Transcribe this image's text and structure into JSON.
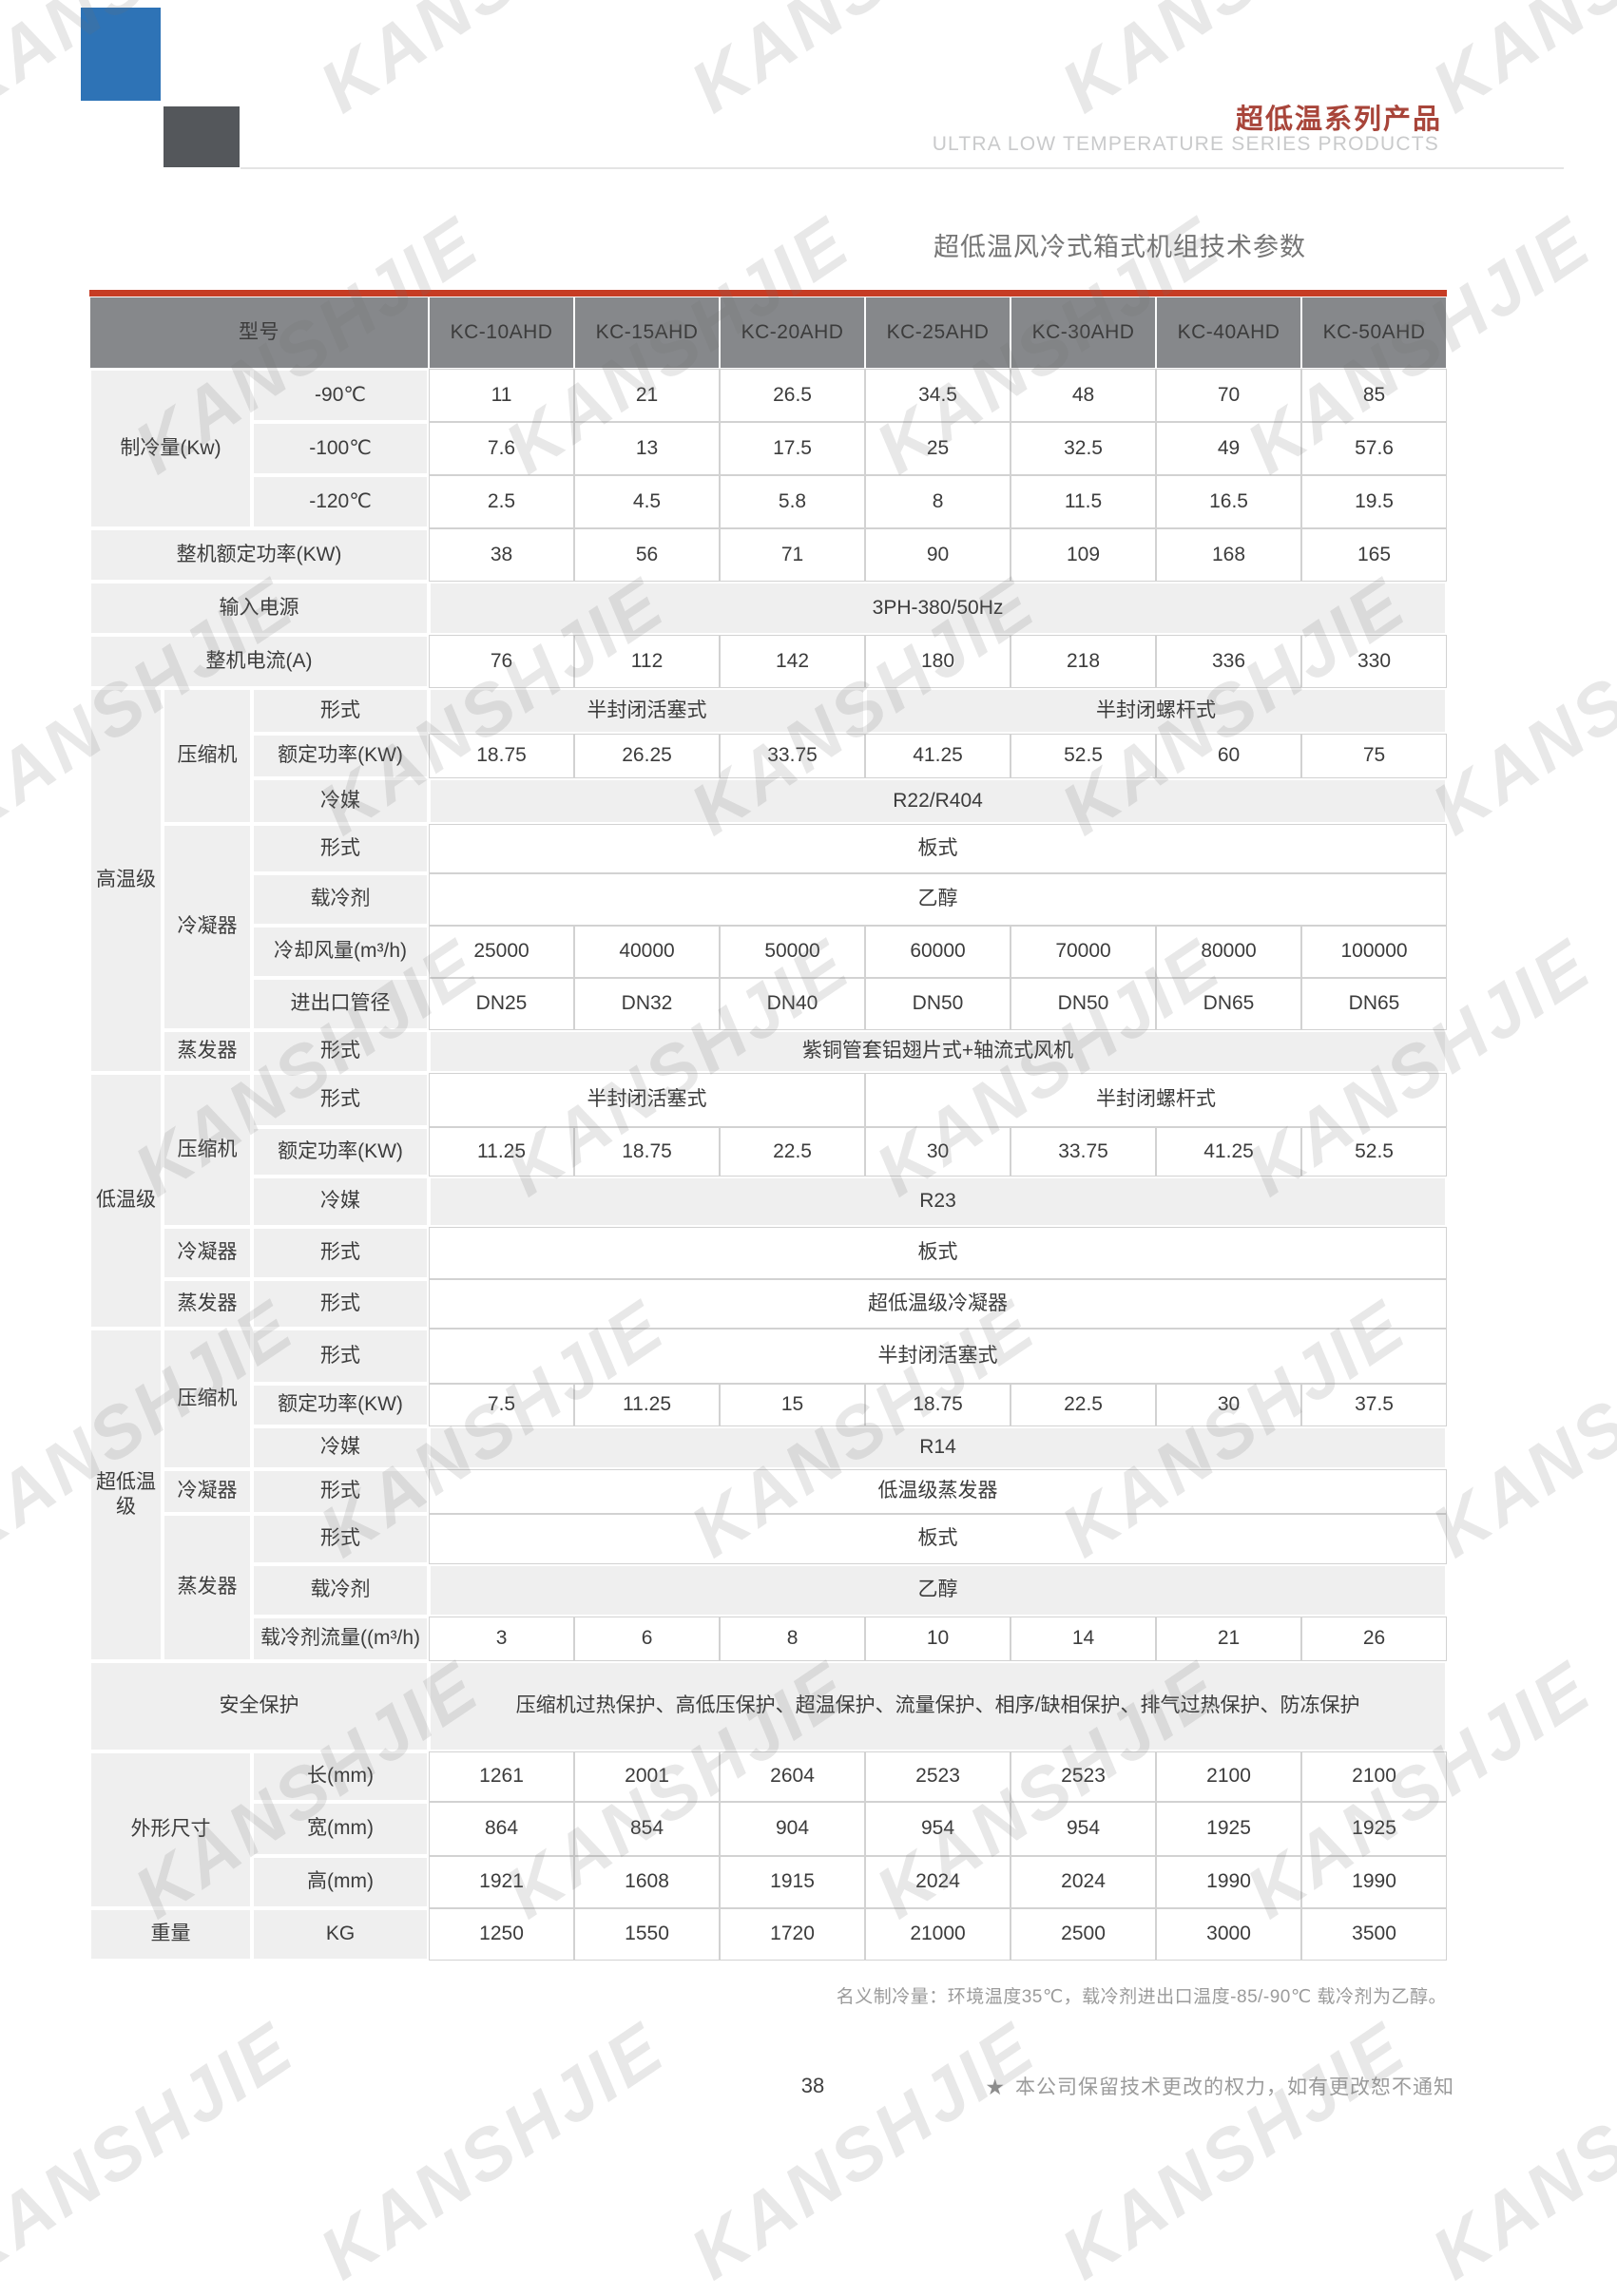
{
  "watermark": {
    "text": "KANSHJIE"
  },
  "colors": {
    "accent_red": "#c63c24",
    "header_gray": "#86888b",
    "brand_blue": "#2e73b6",
    "brand_dark_red": "#a8453a"
  },
  "page_header": {
    "title_cn": "超低温系列产品",
    "title_en": "ULTRA LOW TEMPERATURE SERIES PRODUCTS"
  },
  "table_title": "超低温风冷式箱式机组技术参数",
  "table": {
    "model_header": "型号",
    "models": [
      "KC-10AHD",
      "KC-15AHD",
      "KC-20AHD",
      "KC-25AHD",
      "KC-30AHD",
      "KC-40AHD",
      "KC-50AHD"
    ],
    "cooling": {
      "label": "制冷量(Kw)",
      "rows": [
        {
          "label": "-90℃",
          "values": [
            "11",
            "21",
            "26.5",
            "34.5",
            "48",
            "70",
            "85"
          ]
        },
        {
          "label": "-100℃",
          "values": [
            "7.6",
            "13",
            "17.5",
            "25",
            "32.5",
            "49",
            "57.6"
          ]
        },
        {
          "label": "-120℃",
          "values": [
            "2.5",
            "4.5",
            "5.8",
            "8",
            "11.5",
            "16.5",
            "19.5"
          ]
        }
      ]
    },
    "total_power": {
      "label": "整机额定功率(KW)",
      "values": [
        "38",
        "56",
        "71",
        "90",
        "109",
        "168",
        "165"
      ]
    },
    "input_power": {
      "label": "输入电源",
      "value": "3PH-380/50Hz"
    },
    "total_current": {
      "label": "整机电流(A)",
      "values": [
        "76",
        "112",
        "142",
        "180",
        "218",
        "336",
        "330"
      ]
    },
    "high_stage": {
      "label": "高温级",
      "compressor": {
        "label": "压缩机",
        "type_label": "形式",
        "type_piston": "半封闭活塞式",
        "type_screw": "半封闭螺杆式",
        "power_label": "额定功率(KW)",
        "power_values": [
          "18.75",
          "26.25",
          "33.75",
          "41.25",
          "52.5",
          "60",
          "75"
        ],
        "refrigerant_label": "冷媒",
        "refrigerant": "R22/R404"
      },
      "condenser": {
        "label": "冷凝器",
        "type_label": "形式",
        "type": "板式",
        "coolant_label": "载冷剂",
        "coolant": "乙醇",
        "airflow_label": "冷却风量(m³/h)",
        "airflow_values": [
          "25000",
          "40000",
          "50000",
          "60000",
          "70000",
          "80000",
          "100000"
        ],
        "pipe_label": "进出口管径",
        "pipe_values": [
          "DN25",
          "DN32",
          "DN40",
          "DN50",
          "DN50",
          "DN65",
          "DN65"
        ]
      },
      "evaporator": {
        "label": "蒸发器",
        "type_label": "形式",
        "type": "紫铜管套铝翅片式+轴流式风机"
      }
    },
    "low_stage": {
      "label": "低温级",
      "compressor": {
        "label": "压缩机",
        "type_label": "形式",
        "type_piston": "半封闭活塞式",
        "type_screw": "半封闭螺杆式",
        "power_label": "额定功率(KW)",
        "power_values": [
          "11.25",
          "18.75",
          "22.5",
          "30",
          "33.75",
          "41.25",
          "52.5"
        ],
        "refrigerant_label": "冷媒",
        "refrigerant": "R23"
      },
      "condenser": {
        "label": "冷凝器",
        "type_label": "形式",
        "type": "板式"
      },
      "evaporator": {
        "label": "蒸发器",
        "type_label": "形式",
        "type": "超低温级冷凝器"
      }
    },
    "ultra_stage": {
      "label": "超低温级",
      "compressor": {
        "label": "压缩机",
        "type_label": "形式",
        "type": "半封闭活塞式",
        "power_label": "额定功率(KW)",
        "power_values": [
          "7.5",
          "11.25",
          "15",
          "18.75",
          "22.5",
          "30",
          "37.5"
        ],
        "refrigerant_label": "冷媒",
        "refrigerant": "R14"
      },
      "condenser": {
        "label": "冷凝器",
        "type_label": "形式",
        "type": "低温级蒸发器"
      },
      "evaporator": {
        "label": "蒸发器",
        "type_label": "形式",
        "type": "板式",
        "coolant_label": "载冷剂",
        "coolant": "乙醇",
        "flow_label": "载冷剂流量((m³/h)",
        "flow_values": [
          "3",
          "6",
          "8",
          "10",
          "14",
          "21",
          "26"
        ]
      }
    },
    "safety": {
      "label": "安全保护",
      "value": "压缩机过热保护、高低压保护、超温保护、流量保护、相序/缺相保护、排气过热保护、防冻保护"
    },
    "dimensions": {
      "label": "外形尺寸",
      "rows": [
        {
          "label": "长(mm)",
          "values": [
            "1261",
            "2001",
            "2604",
            "2523",
            "2523",
            "2100",
            "2100"
          ]
        },
        {
          "label": "宽(mm)",
          "values": [
            "864",
            "854",
            "904",
            "954",
            "954",
            "1925",
            "1925"
          ]
        },
        {
          "label": "高(mm)",
          "values": [
            "1921",
            "1608",
            "1915",
            "2024",
            "2024",
            "1990",
            "1990"
          ]
        }
      ]
    },
    "weight": {
      "label": "重量",
      "unit": "KG",
      "values": [
        "1250",
        "1550",
        "1720",
        "21000",
        "2500",
        "3000",
        "3500"
      ]
    }
  },
  "note": "名义制冷量：环境温度35℃，载冷剂进出口温度-85/-90℃  载冷剂为乙醇。",
  "footer": {
    "page_number": "38",
    "star": "★",
    "notice": "本公司保留技术更改的权力，如有更改恕不通知"
  }
}
